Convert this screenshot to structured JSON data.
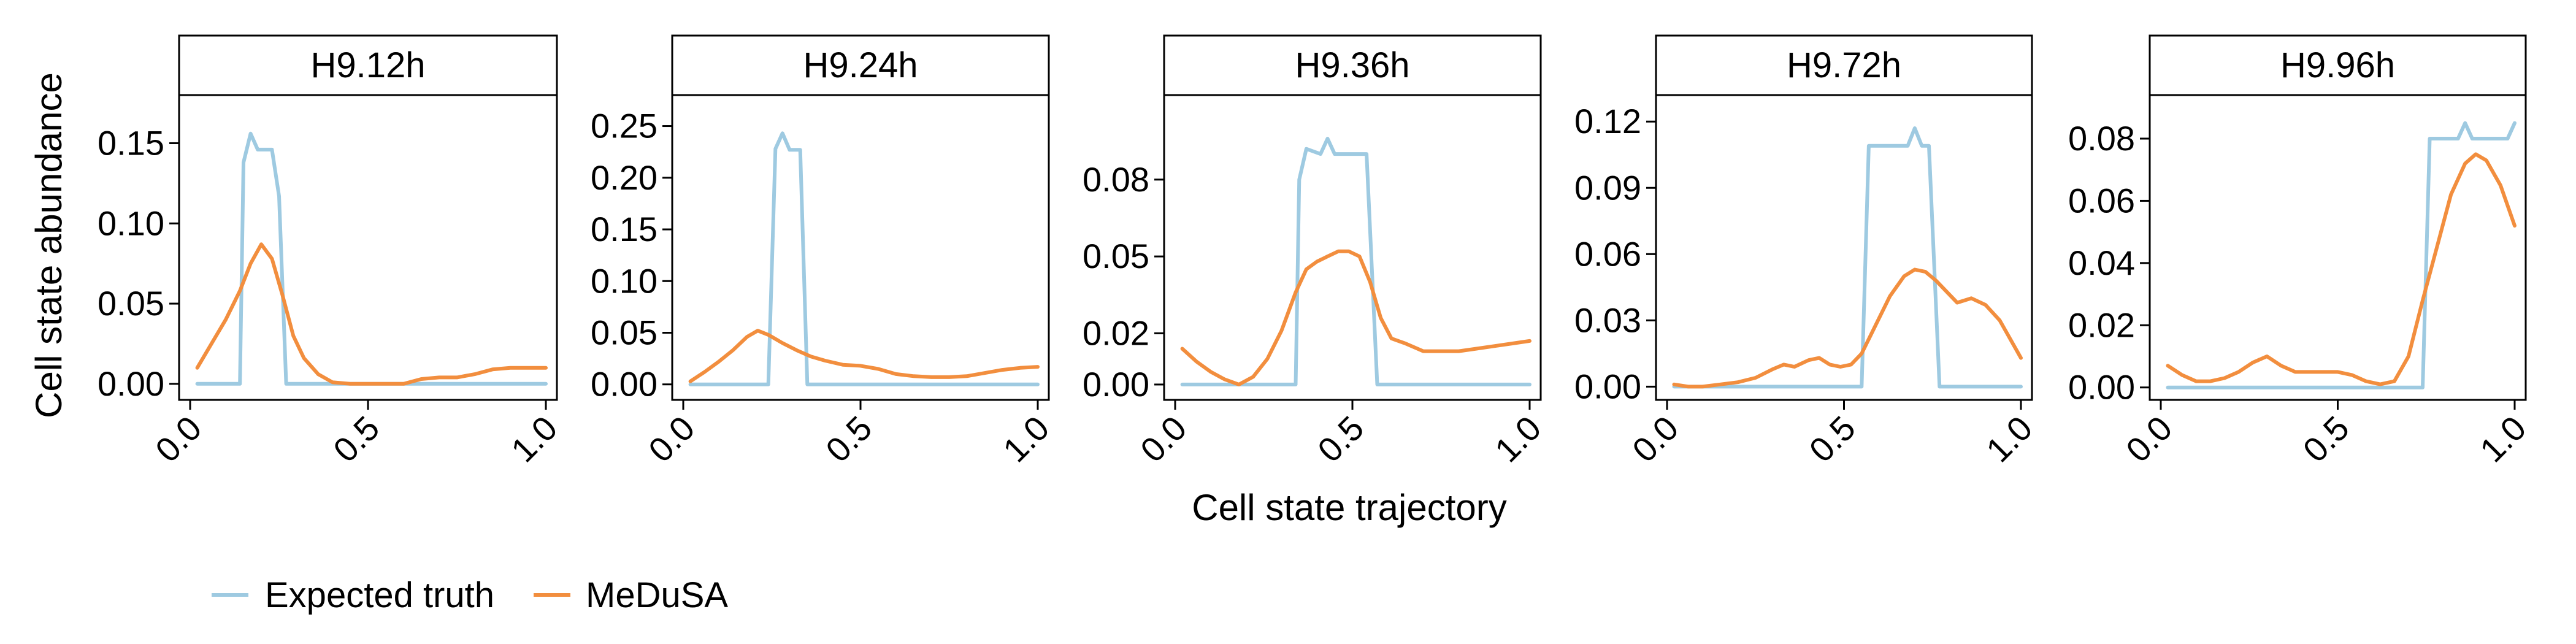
{
  "axes": {
    "ylabel": "Cell state abundance",
    "xlabel": "Cell state trajectory"
  },
  "legend": {
    "position": "bottom-left",
    "items": [
      {
        "label": "Expected truth",
        "color": "#9ecae1"
      },
      {
        "label": "MeDuSA",
        "color": "#f28e3e"
      }
    ]
  },
  "chart_data": [
    {
      "type": "line",
      "title": "H9.12h",
      "xlim": [
        0,
        1
      ],
      "ylim": [
        -0.01,
        0.18
      ],
      "xticks": [
        0.0,
        0.5,
        1.0
      ],
      "xtick_labels": [
        "0.0",
        "0.5",
        "1.0"
      ],
      "yticks": [
        0.0,
        0.05,
        0.1,
        0.15
      ],
      "ytick_labels": [
        "0.00",
        "0.05",
        "0.10",
        "0.15"
      ],
      "series": [
        {
          "name": "Expected truth",
          "color": "#9ecae1",
          "x": [
            0.02,
            0.14,
            0.15,
            0.17,
            0.19,
            0.23,
            0.25,
            0.27,
            0.5,
            1.0
          ],
          "y": [
            0.0,
            0.0,
            0.138,
            0.156,
            0.146,
            0.146,
            0.117,
            0.0,
            0.0,
            0.0
          ]
        },
        {
          "name": "MeDuSA",
          "color": "#f28e3e",
          "x": [
            0.02,
            0.06,
            0.1,
            0.14,
            0.17,
            0.2,
            0.23,
            0.26,
            0.29,
            0.32,
            0.36,
            0.4,
            0.45,
            0.5,
            0.55,
            0.6,
            0.65,
            0.7,
            0.75,
            0.8,
            0.85,
            0.9,
            0.95,
            1.0
          ],
          "y": [
            0.01,
            0.025,
            0.04,
            0.058,
            0.075,
            0.087,
            0.078,
            0.055,
            0.03,
            0.016,
            0.006,
            0.001,
            0.0,
            0.0,
            0.0,
            0.0,
            0.003,
            0.004,
            0.004,
            0.006,
            0.009,
            0.01,
            0.01,
            0.01
          ]
        }
      ]
    },
    {
      "type": "line",
      "title": "H9.24h",
      "xlim": [
        0,
        1
      ],
      "ylim": [
        -0.015,
        0.28
      ],
      "xticks": [
        0.0,
        0.5,
        1.0
      ],
      "xtick_labels": [
        "0.0",
        "0.5",
        "1.0"
      ],
      "yticks": [
        0.0,
        0.05,
        0.1,
        0.15,
        0.2,
        0.25
      ],
      "ytick_labels": [
        "0.00",
        "0.05",
        "0.10",
        "0.15",
        "0.20",
        "0.25"
      ],
      "series": [
        {
          "name": "Expected truth",
          "color": "#9ecae1",
          "x": [
            0.02,
            0.24,
            0.26,
            0.28,
            0.3,
            0.33,
            0.35,
            0.5,
            1.0
          ],
          "y": [
            0.0,
            0.0,
            0.228,
            0.243,
            0.227,
            0.227,
            0.0,
            0.0,
            0.0
          ]
        },
        {
          "name": "MeDuSA",
          "color": "#f28e3e",
          "x": [
            0.02,
            0.06,
            0.1,
            0.14,
            0.18,
            0.21,
            0.24,
            0.28,
            0.32,
            0.36,
            0.4,
            0.45,
            0.5,
            0.55,
            0.6,
            0.65,
            0.7,
            0.75,
            0.8,
            0.85,
            0.9,
            0.95,
            1.0
          ],
          "y": [
            0.003,
            0.012,
            0.022,
            0.033,
            0.046,
            0.052,
            0.048,
            0.04,
            0.033,
            0.027,
            0.023,
            0.019,
            0.018,
            0.015,
            0.01,
            0.008,
            0.007,
            0.007,
            0.008,
            0.011,
            0.014,
            0.016,
            0.017
          ]
        }
      ]
    },
    {
      "type": "line",
      "title": "H9.36h",
      "xlim": [
        0,
        1
      ],
      "ylim": [
        -0.006,
        0.113
      ],
      "xticks": [
        0.0,
        0.5,
        1.0
      ],
      "xtick_labels": [
        "0.0",
        "0.5",
        "1.0"
      ],
      "yticks": [
        0.0,
        0.02,
        0.05,
        0.08
      ],
      "ytick_labels": [
        "0.00",
        "0.02",
        "0.05",
        "0.08"
      ],
      "series": [
        {
          "name": "Expected truth",
          "color": "#9ecae1",
          "x": [
            0.02,
            0.34,
            0.35,
            0.37,
            0.41,
            0.43,
            0.45,
            0.48,
            0.54,
            0.57,
            0.6,
            1.0
          ],
          "y": [
            0.0,
            0.0,
            0.08,
            0.092,
            0.09,
            0.096,
            0.09,
            0.09,
            0.09,
            0.0,
            0.0,
            0.0
          ]
        },
        {
          "name": "MeDuSA",
          "color": "#f28e3e",
          "x": [
            0.02,
            0.06,
            0.1,
            0.14,
            0.18,
            0.22,
            0.26,
            0.3,
            0.34,
            0.37,
            0.4,
            0.43,
            0.46,
            0.49,
            0.52,
            0.55,
            0.58,
            0.61,
            0.65,
            0.7,
            0.75,
            0.8,
            0.85,
            0.9,
            0.95,
            1.0
          ],
          "y": [
            0.014,
            0.009,
            0.005,
            0.002,
            0.0,
            0.003,
            0.01,
            0.021,
            0.036,
            0.045,
            0.048,
            0.05,
            0.052,
            0.052,
            0.05,
            0.04,
            0.026,
            0.018,
            0.016,
            0.013,
            0.013,
            0.013,
            0.014,
            0.015,
            0.016,
            0.017
          ]
        }
      ]
    },
    {
      "type": "line",
      "title": "H9.72h",
      "xlim": [
        0,
        1
      ],
      "ylim": [
        -0.006,
        0.132
      ],
      "xticks": [
        0.0,
        0.5,
        1.0
      ],
      "xtick_labels": [
        "0.0",
        "0.5",
        "1.0"
      ],
      "yticks": [
        0.0,
        0.03,
        0.06,
        0.09,
        0.12
      ],
      "ytick_labels": [
        "0.00",
        "0.03",
        "0.06",
        "0.09",
        "0.12"
      ],
      "series": [
        {
          "name": "Expected truth",
          "color": "#9ecae1",
          "x": [
            0.02,
            0.55,
            0.57,
            0.6,
            0.62,
            0.64,
            0.68,
            0.7,
            0.72,
            0.74,
            0.77,
            1.0
          ],
          "y": [
            0.0,
            0.0,
            0.109,
            0.109,
            0.109,
            0.109,
            0.109,
            0.117,
            0.109,
            0.109,
            0.0,
            0.0
          ]
        },
        {
          "name": "MeDuSA",
          "color": "#f28e3e",
          "x": [
            0.02,
            0.06,
            0.1,
            0.15,
            0.2,
            0.25,
            0.3,
            0.33,
            0.36,
            0.4,
            0.43,
            0.46,
            0.49,
            0.52,
            0.55,
            0.59,
            0.63,
            0.67,
            0.7,
            0.73,
            0.76,
            0.79,
            0.82,
            0.86,
            0.9,
            0.94,
            1.0
          ],
          "y": [
            0.001,
            0.0,
            0.0,
            0.001,
            0.002,
            0.004,
            0.008,
            0.01,
            0.009,
            0.012,
            0.013,
            0.01,
            0.009,
            0.01,
            0.015,
            0.028,
            0.041,
            0.05,
            0.053,
            0.052,
            0.048,
            0.043,
            0.038,
            0.04,
            0.037,
            0.03,
            0.013
          ]
        }
      ]
    },
    {
      "type": "line",
      "title": "H9.96h",
      "xlim": [
        0,
        1
      ],
      "ylim": [
        -0.004,
        0.094
      ],
      "xticks": [
        0.0,
        0.5,
        1.0
      ],
      "xtick_labels": [
        "0.0",
        "0.5",
        "1.0"
      ],
      "yticks": [
        0.0,
        0.02,
        0.04,
        0.06,
        0.08
      ],
      "ytick_labels": [
        "0.00",
        "0.02",
        "0.04",
        "0.06",
        "0.08"
      ],
      "series": [
        {
          "name": "Expected truth",
          "color": "#9ecae1",
          "x": [
            0.02,
            0.74,
            0.76,
            0.8,
            0.84,
            0.86,
            0.88,
            0.92,
            0.96,
            0.98,
            1.0
          ],
          "y": [
            0.0,
            0.0,
            0.08,
            0.08,
            0.08,
            0.085,
            0.08,
            0.08,
            0.08,
            0.08,
            0.085
          ]
        },
        {
          "name": "MeDuSA",
          "color": "#f28e3e",
          "x": [
            0.02,
            0.06,
            0.1,
            0.14,
            0.18,
            0.22,
            0.26,
            0.3,
            0.34,
            0.38,
            0.42,
            0.46,
            0.5,
            0.54,
            0.58,
            0.62,
            0.66,
            0.7,
            0.74,
            0.78,
            0.82,
            0.86,
            0.89,
            0.92,
            0.96,
            1.0
          ],
          "y": [
            0.007,
            0.004,
            0.002,
            0.002,
            0.003,
            0.005,
            0.008,
            0.01,
            0.007,
            0.005,
            0.005,
            0.005,
            0.005,
            0.004,
            0.002,
            0.001,
            0.002,
            0.01,
            0.028,
            0.045,
            0.062,
            0.072,
            0.075,
            0.073,
            0.065,
            0.052
          ]
        }
      ]
    }
  ]
}
